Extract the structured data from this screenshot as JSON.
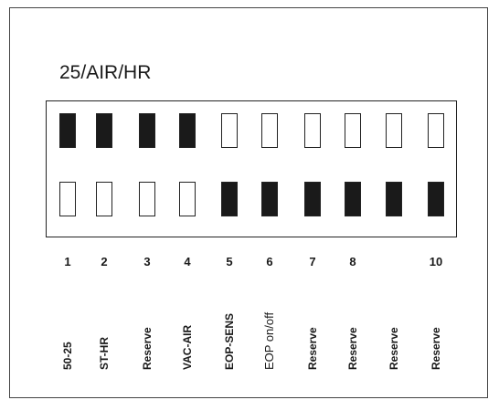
{
  "title": "25/AIR/HR",
  "switches": [
    {
      "number": "1",
      "label": "50-25",
      "top_filled": true,
      "bottom_filled": false
    },
    {
      "number": "2",
      "label": "ST-HR",
      "top_filled": true,
      "bottom_filled": false
    },
    {
      "number": "3",
      "label": "Reserve",
      "top_filled": true,
      "bottom_filled": false
    },
    {
      "number": "4",
      "label": "VAC-AIR",
      "top_filled": true,
      "bottom_filled": false
    },
    {
      "number": "5",
      "label": "EOP-SENS",
      "top_filled": false,
      "bottom_filled": true
    },
    {
      "number": "6",
      "label": "EOP on/off",
      "top_filled": false,
      "bottom_filled": true
    },
    {
      "number": "7",
      "label": "Reserve",
      "top_filled": false,
      "bottom_filled": true
    },
    {
      "number": "8",
      "label": "Reserve",
      "top_filled": false,
      "bottom_filled": true
    },
    {
      "number": "",
      "label": "Reserve",
      "top_filled": false,
      "bottom_filled": true
    },
    {
      "number": "10",
      "label": "Reserve",
      "top_filled": false,
      "bottom_filled": true
    }
  ]
}
